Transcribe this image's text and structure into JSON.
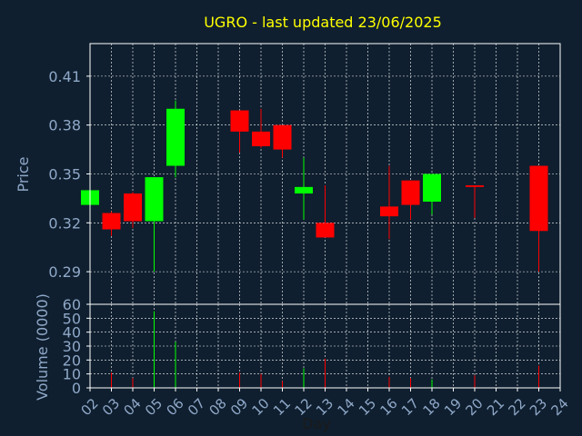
{
  "chart_data": [
    {
      "type": "candlestick",
      "title": "UGRO - last updated 23/06/2025",
      "ylabel": "Price",
      "ylim": [
        0.27,
        0.43
      ],
      "yticks": [
        0.29,
        0.32,
        0.35,
        0.38,
        0.41
      ],
      "ytick_labels": [
        "0.29",
        "0.32",
        "0.35",
        "0.38",
        "0.41"
      ],
      "grid": true,
      "candles": [
        {
          "day": "02",
          "open": 0.331,
          "close": 0.34,
          "high": 0.34,
          "low": 0.331
        },
        {
          "day": "03",
          "open": 0.326,
          "close": 0.316,
          "high": 0.327,
          "low": 0.312
        },
        {
          "day": "04",
          "open": 0.338,
          "close": 0.321,
          "high": 0.339,
          "low": 0.317
        },
        {
          "day": "05",
          "open": 0.321,
          "close": 0.348,
          "high": 0.348,
          "low": 0.29
        },
        {
          "day": "06",
          "open": 0.355,
          "close": 0.39,
          "high": 0.395,
          "low": 0.348
        },
        {
          "day": "09",
          "open": 0.389,
          "close": 0.376,
          "high": 0.389,
          "low": 0.363
        },
        {
          "day": "10",
          "open": 0.376,
          "close": 0.367,
          "high": 0.39,
          "low": 0.366
        },
        {
          "day": "11",
          "open": 0.38,
          "close": 0.365,
          "high": 0.38,
          "low": 0.36
        },
        {
          "day": "12",
          "open": 0.338,
          "close": 0.342,
          "high": 0.36,
          "low": 0.322
        },
        {
          "day": "13",
          "open": 0.32,
          "close": 0.311,
          "high": 0.343,
          "low": 0.311
        },
        {
          "day": "16",
          "open": 0.33,
          "close": 0.324,
          "high": 0.355,
          "low": 0.31
        },
        {
          "day": "17",
          "open": 0.346,
          "close": 0.331,
          "high": 0.346,
          "low": 0.322
        },
        {
          "day": "18",
          "open": 0.333,
          "close": 0.35,
          "high": 0.35,
          "low": 0.325
        },
        {
          "day": "20",
          "open": 0.343,
          "close": 0.342,
          "high": 0.343,
          "low": 0.323
        },
        {
          "day": "23",
          "open": 0.355,
          "close": 0.315,
          "high": 0.355,
          "low": 0.29
        }
      ]
    },
    {
      "type": "bar",
      "ylabel": "Volume (0000)",
      "xlabel": "Day",
      "ylim": [
        0,
        60
      ],
      "yticks": [
        0,
        10,
        20,
        30,
        40,
        50,
        60
      ],
      "ytick_labels": [
        "0",
        "10",
        "20",
        "30",
        "40",
        "50",
        "60"
      ],
      "categories": [
        "02",
        "03",
        "04",
        "05",
        "06",
        "07",
        "08",
        "09",
        "10",
        "11",
        "12",
        "13",
        "14",
        "15",
        "16",
        "17",
        "18",
        "19",
        "20",
        "21",
        "22",
        "23",
        "24"
      ],
      "grid": true,
      "bars": [
        {
          "day": "03",
          "value": 11,
          "direction": "down"
        },
        {
          "day": "04",
          "value": 7,
          "direction": "down"
        },
        {
          "day": "05",
          "value": 55,
          "direction": "up"
        },
        {
          "day": "06",
          "value": 33,
          "direction": "up"
        },
        {
          "day": "09",
          "value": 11,
          "direction": "down"
        },
        {
          "day": "10",
          "value": 10,
          "direction": "down"
        },
        {
          "day": "11",
          "value": 5,
          "direction": "down"
        },
        {
          "day": "12",
          "value": 14,
          "direction": "up"
        },
        {
          "day": "13",
          "value": 21,
          "direction": "down"
        },
        {
          "day": "16",
          "value": 8,
          "direction": "down"
        },
        {
          "day": "17",
          "value": 7,
          "direction": "down"
        },
        {
          "day": "18",
          "value": 6,
          "direction": "up"
        },
        {
          "day": "20",
          "value": 9,
          "direction": "down"
        },
        {
          "day": "23",
          "value": 16,
          "direction": "down"
        }
      ]
    }
  ],
  "colors": {
    "background": "#0f1f2f",
    "frame": "#ffffff",
    "title": "#ffff00",
    "axis_label": "#8fa8c8",
    "tick_label": "#8fa8c8",
    "grid": "#ffffff",
    "up": "#00ff00",
    "down": "#ff0000"
  }
}
